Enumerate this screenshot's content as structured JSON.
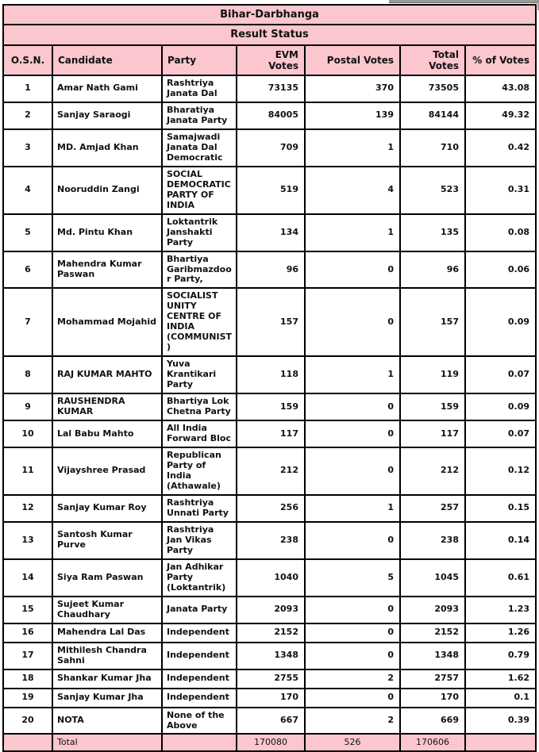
{
  "title": "Bihar-Darbhanga",
  "subtitle": "Result Status",
  "colors": {
    "header_pink": "#fbc6ce",
    "border_black": "#000000",
    "page_background": "#ffffff",
    "scrollbar_gray": "#9a9a9a"
  },
  "table": {
    "columns": [
      "O.S.N.",
      "Candidate",
      "Party",
      "EVM Votes",
      "Postal Votes",
      "Total Votes",
      "% of Votes"
    ],
    "rows": [
      {
        "osn": "1",
        "candidate": "Amar Nath Gami",
        "party": "Rashtriya Janata Dal",
        "evm": "73135",
        "postal": "370",
        "total": "73505",
        "pct": "43.08"
      },
      {
        "osn": "2",
        "candidate": "Sanjay Saraogi",
        "party": "Bharatiya Janata Party",
        "evm": "84005",
        "postal": "139",
        "total": "84144",
        "pct": "49.32"
      },
      {
        "osn": "3",
        "candidate": "MD. Amjad Khan",
        "party": "Samajwadi Janata Dal Democratic",
        "evm": "709",
        "postal": "1",
        "total": "710",
        "pct": "0.42"
      },
      {
        "osn": "4",
        "candidate": "Nooruddin Zangi",
        "party": "SOCIAL DEMOCRATIC PARTY OF INDIA",
        "evm": "519",
        "postal": "4",
        "total": "523",
        "pct": "0.31"
      },
      {
        "osn": "5",
        "candidate": "Md. Pintu Khan",
        "party": "Loktantrik Janshakti Party",
        "evm": "134",
        "postal": "1",
        "total": "135",
        "pct": "0.08"
      },
      {
        "osn": "6",
        "candidate": "Mahendra Kumar Paswan",
        "party": "Bhartiya Garibmazdoor Party,",
        "evm": "96",
        "postal": "0",
        "total": "96",
        "pct": "0.06"
      },
      {
        "osn": "7",
        "candidate": "Mohammad Mojahid",
        "party": "SOCIALIST UNITY CENTRE OF INDIA (COMMUNIST)",
        "evm": "157",
        "postal": "0",
        "total": "157",
        "pct": "0.09"
      },
      {
        "osn": "8",
        "candidate": "RAJ KUMAR MAHTO",
        "party": "Yuva Krantikari Party",
        "evm": "118",
        "postal": "1",
        "total": "119",
        "pct": "0.07"
      },
      {
        "osn": "9",
        "candidate": "RAUSHENDRA KUMAR",
        "party": "Bhartiya Lok Chetna Party",
        "evm": "159",
        "postal": "0",
        "total": "159",
        "pct": "0.09"
      },
      {
        "osn": "10",
        "candidate": "Lal Babu Mahto",
        "party": "All India Forward Bloc",
        "evm": "117",
        "postal": "0",
        "total": "117",
        "pct": "0.07"
      },
      {
        "osn": "11",
        "candidate": "Vijayshree Prasad",
        "party": "Republican Party of India (Athawale)",
        "evm": "212",
        "postal": "0",
        "total": "212",
        "pct": "0.12"
      },
      {
        "osn": "12",
        "candidate": "Sanjay Kumar Roy",
        "party": "Rashtriya Unnati Party",
        "evm": "256",
        "postal": "1",
        "total": "257",
        "pct": "0.15"
      },
      {
        "osn": "13",
        "candidate": "Santosh Kumar Purve",
        "party": "Rashtriya Jan Vikas Party",
        "evm": "238",
        "postal": "0",
        "total": "238",
        "pct": "0.14"
      },
      {
        "osn": "14",
        "candidate": "Siya Ram Paswan",
        "party": "Jan Adhikar Party (Loktantrik)",
        "evm": "1040",
        "postal": "5",
        "total": "1045",
        "pct": "0.61"
      },
      {
        "osn": "15",
        "candidate": "Sujeet Kumar Chaudhary",
        "party": "Janata Party",
        "evm": "2093",
        "postal": "0",
        "total": "2093",
        "pct": "1.23"
      },
      {
        "osn": "16",
        "candidate": "Mahendra Lal Das",
        "party": "Independent",
        "evm": "2152",
        "postal": "0",
        "total": "2152",
        "pct": "1.26"
      },
      {
        "osn": "17",
        "candidate": "Mithilesh Chandra Sahni",
        "party": "Independent",
        "evm": "1348",
        "postal": "0",
        "total": "1348",
        "pct": "0.79"
      },
      {
        "osn": "18",
        "candidate": "Shankar Kumar Jha",
        "party": "Independent",
        "evm": "2755",
        "postal": "2",
        "total": "2757",
        "pct": "1.62"
      },
      {
        "osn": "19",
        "candidate": "Sanjay Kumar Jha",
        "party": "Independent",
        "evm": "170",
        "postal": "0",
        "total": "170",
        "pct": "0.1"
      },
      {
        "osn": "20",
        "candidate": "NOTA",
        "party": "None of the Above",
        "evm": "667",
        "postal": "2",
        "total": "669",
        "pct": "0.39"
      }
    ],
    "total_row": {
      "label": "Total",
      "evm": "170080",
      "postal": "526",
      "total": "170606"
    }
  }
}
